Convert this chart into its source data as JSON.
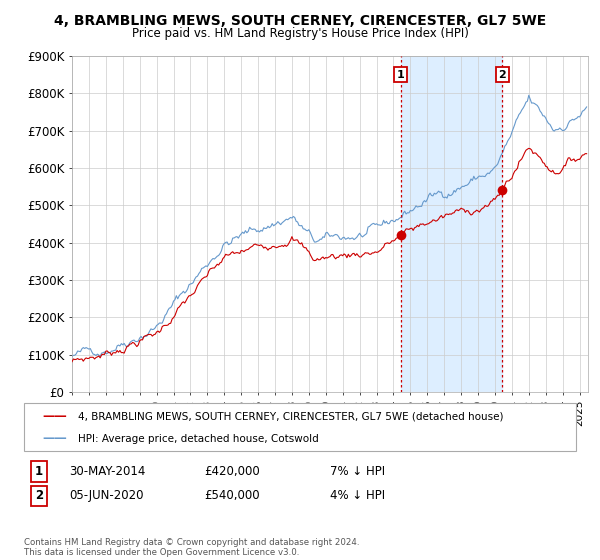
{
  "title": "4, BRAMBLING MEWS, SOUTH CERNEY, CIRENCESTER, GL7 5WE",
  "subtitle": "Price paid vs. HM Land Registry's House Price Index (HPI)",
  "legend_house": "4, BRAMBLING MEWS, SOUTH CERNEY, CIRENCESTER, GL7 5WE (detached house)",
  "legend_hpi": "HPI: Average price, detached house, Cotswold",
  "annotation1_label": "1",
  "annotation1_date": "30-MAY-2014",
  "annotation1_price": "£420,000",
  "annotation1_hpi": "7% ↓ HPI",
  "annotation1_year": 2014.42,
  "annotation1_value": 420000,
  "annotation2_label": "2",
  "annotation2_date": "05-JUN-2020",
  "annotation2_price": "£540,000",
  "annotation2_hpi": "4% ↓ HPI",
  "annotation2_year": 2020.43,
  "annotation2_value": 540000,
  "house_color": "#cc0000",
  "hpi_color": "#6699cc",
  "shade_color": "#ddeeff",
  "vline_color": "#cc0000",
  "background_color": "#ffffff",
  "grid_color": "#cccccc",
  "ymin": 0,
  "ymax": 900000,
  "yticks": [
    0,
    100000,
    200000,
    300000,
    400000,
    500000,
    600000,
    700000,
    800000,
    900000
  ],
  "ytick_labels": [
    "£0",
    "£100K",
    "£200K",
    "£300K",
    "£400K",
    "£500K",
    "£600K",
    "£700K",
    "£800K",
    "£900K"
  ],
  "xmin": 1995.0,
  "xmax": 2025.5,
  "xticks": [
    1995,
    1996,
    1997,
    1998,
    1999,
    2000,
    2001,
    2002,
    2003,
    2004,
    2005,
    2006,
    2007,
    2008,
    2009,
    2010,
    2011,
    2012,
    2013,
    2014,
    2015,
    2016,
    2017,
    2018,
    2019,
    2020,
    2021,
    2022,
    2023,
    2024,
    2025
  ],
  "footnote": "Contains HM Land Registry data © Crown copyright and database right 2024.\nThis data is licensed under the Open Government Licence v3.0."
}
